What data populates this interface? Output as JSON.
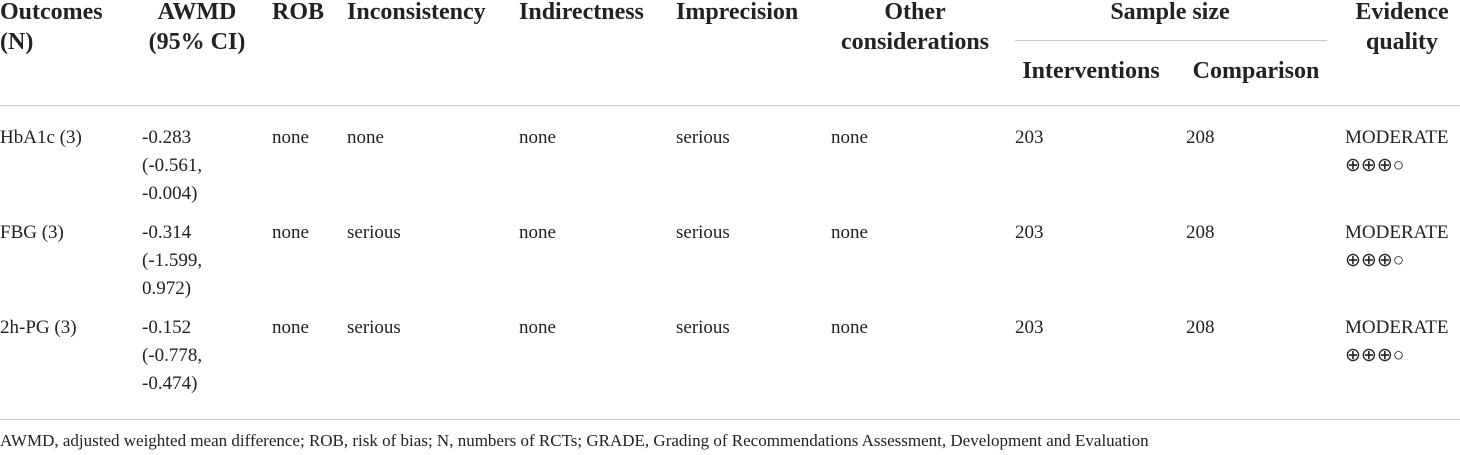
{
  "table": {
    "columns": [
      [
        "Outcomes",
        "(N)"
      ],
      [
        "AWMD",
        "(95% CI)"
      ],
      [
        "ROB"
      ],
      [
        "Inconsistency"
      ],
      [
        "Indirectness"
      ],
      [
        "Imprecision"
      ],
      [
        "Other",
        "considerations"
      ],
      [
        "Evidence",
        "quality"
      ]
    ],
    "group": {
      "label": "Sample size",
      "columns": [
        "Interventions",
        "Comparison"
      ]
    },
    "rows": [
      [
        [
          "HbA1c (3)"
        ],
        [
          "-0.283",
          "(-0.561,",
          "-0.004)"
        ],
        [
          "none"
        ],
        [
          "none"
        ],
        [
          "none"
        ],
        [
          "serious"
        ],
        [
          "none"
        ],
        [
          203
        ],
        [
          208
        ],
        [
          "MODERATE",
          "⊕⊕⊕○"
        ]
      ],
      [
        [
          "FBG (3)"
        ],
        [
          "-0.314",
          "(-1.599,",
          "0.972)"
        ],
        [
          "none"
        ],
        [
          "serious"
        ],
        [
          "none"
        ],
        [
          "serious"
        ],
        [
          "none"
        ],
        [
          203
        ],
        [
          208
        ],
        [
          "MODERATE",
          "⊕⊕⊕○"
        ]
      ],
      [
        [
          "2h-PG (3)"
        ],
        [
          "-0.152",
          "(-0.778,",
          "-0.474)"
        ],
        [
          "none"
        ],
        [
          "serious"
        ],
        [
          "none"
        ],
        [
          "serious"
        ],
        [
          "none"
        ],
        [
          203
        ],
        [
          208
        ],
        [
          "MODERATE",
          "⊕⊕⊕○"
        ]
      ]
    ],
    "footnote": "AWMD, adjusted weighted mean difference; ROB, risk of bias; N, numbers of RCTs; GRADE, Grading of Recommendations Assessment, Development and Evaluation"
  }
}
